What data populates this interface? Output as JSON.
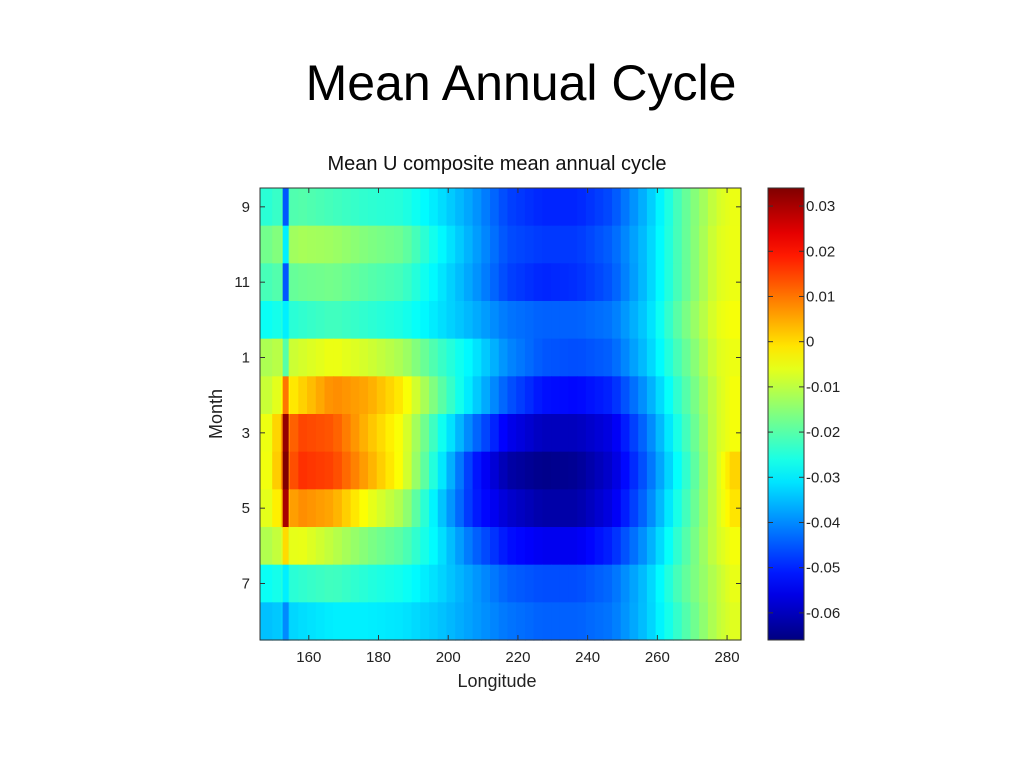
{
  "slide": {
    "title": "Mean Annual Cycle"
  },
  "chart_data": {
    "type": "heatmap",
    "title": "Mean U composite mean annual cycle",
    "xlabel": "Longitude",
    "ylabel": "Month",
    "xlim": [
      146,
      284
    ],
    "x_ticks": [
      160,
      180,
      200,
      220,
      240,
      260,
      280
    ],
    "x_tick_labels": [
      "160",
      "180",
      "200",
      "220",
      "240",
      "260",
      "280"
    ],
    "y_ticks": [
      9,
      11,
      1,
      3,
      5,
      7
    ],
    "y_tick_labels": [
      "9",
      "11",
      "1",
      "3",
      "5",
      "7"
    ],
    "months": [
      9,
      10,
      11,
      12,
      1,
      2,
      3,
      4,
      5,
      6,
      7,
      8
    ],
    "x": [
      147,
      157,
      167,
      177,
      187,
      197,
      207,
      217,
      227,
      237,
      247,
      257,
      267,
      277,
      282
    ],
    "values": [
      [
        -0.025,
        -0.02,
        -0.022,
        -0.024,
        -0.025,
        -0.031,
        -0.038,
        -0.047,
        -0.05,
        -0.05,
        -0.046,
        -0.035,
        -0.02,
        -0.008,
        -0.005
      ],
      [
        -0.018,
        -0.012,
        -0.013,
        -0.016,
        -0.018,
        -0.028,
        -0.037,
        -0.046,
        -0.048,
        -0.048,
        -0.044,
        -0.034,
        -0.02,
        -0.007,
        -0.005
      ],
      [
        -0.022,
        -0.018,
        -0.017,
        -0.02,
        -0.022,
        -0.03,
        -0.038,
        -0.047,
        -0.05,
        -0.049,
        -0.045,
        -0.034,
        -0.02,
        -0.007,
        -0.005
      ],
      [
        -0.028,
        -0.024,
        -0.022,
        -0.024,
        -0.026,
        -0.031,
        -0.036,
        -0.042,
        -0.044,
        -0.044,
        -0.042,
        -0.033,
        -0.018,
        -0.006,
        -0.004
      ],
      [
        -0.012,
        -0.008,
        -0.005,
        -0.008,
        -0.012,
        -0.022,
        -0.03,
        -0.04,
        -0.045,
        -0.046,
        -0.044,
        -0.034,
        -0.02,
        -0.007,
        -0.005
      ],
      [
        -0.01,
        0.0,
        0.008,
        0.005,
        -0.002,
        -0.018,
        -0.032,
        -0.045,
        -0.052,
        -0.053,
        -0.05,
        -0.038,
        -0.022,
        -0.008,
        -0.004
      ],
      [
        -0.008,
        0.015,
        0.013,
        0.003,
        -0.005,
        -0.025,
        -0.042,
        -0.055,
        -0.06,
        -0.06,
        -0.056,
        -0.042,
        -0.024,
        -0.008,
        -0.004
      ],
      [
        -0.008,
        0.017,
        0.015,
        0.005,
        -0.005,
        -0.028,
        -0.05,
        -0.062,
        -0.065,
        -0.064,
        -0.058,
        -0.044,
        -0.026,
        -0.008,
        0.002
      ],
      [
        -0.008,
        0.008,
        0.005,
        -0.005,
        -0.012,
        -0.032,
        -0.05,
        -0.058,
        -0.062,
        -0.062,
        -0.056,
        -0.042,
        -0.024,
        -0.008,
        0.0
      ],
      [
        -0.012,
        -0.005,
        -0.01,
        -0.016,
        -0.02,
        -0.03,
        -0.043,
        -0.052,
        -0.055,
        -0.055,
        -0.05,
        -0.038,
        -0.022,
        -0.008,
        -0.004
      ],
      [
        -0.028,
        -0.024,
        -0.022,
        -0.025,
        -0.027,
        -0.032,
        -0.038,
        -0.044,
        -0.046,
        -0.046,
        -0.043,
        -0.034,
        -0.02,
        -0.01,
        -0.005
      ],
      [
        -0.035,
        -0.032,
        -0.03,
        -0.03,
        -0.031,
        -0.034,
        -0.038,
        -0.042,
        -0.044,
        -0.044,
        -0.042,
        -0.034,
        -0.022,
        -0.01,
        -0.006
      ]
    ],
    "colorbar": {
      "range": [
        -0.066,
        0.034
      ],
      "ticks": [
        0.03,
        0.02,
        0.01,
        0,
        -0.01,
        -0.02,
        -0.03,
        -0.04,
        -0.05,
        -0.06
      ],
      "tick_labels": [
        "0.03",
        "0.02",
        "0.01",
        "0",
        "-0.01",
        "-0.02",
        "-0.03",
        "-0.04",
        "-0.05",
        "-0.06"
      ],
      "colormap": "jet"
    },
    "grid": false,
    "legend": "none"
  }
}
